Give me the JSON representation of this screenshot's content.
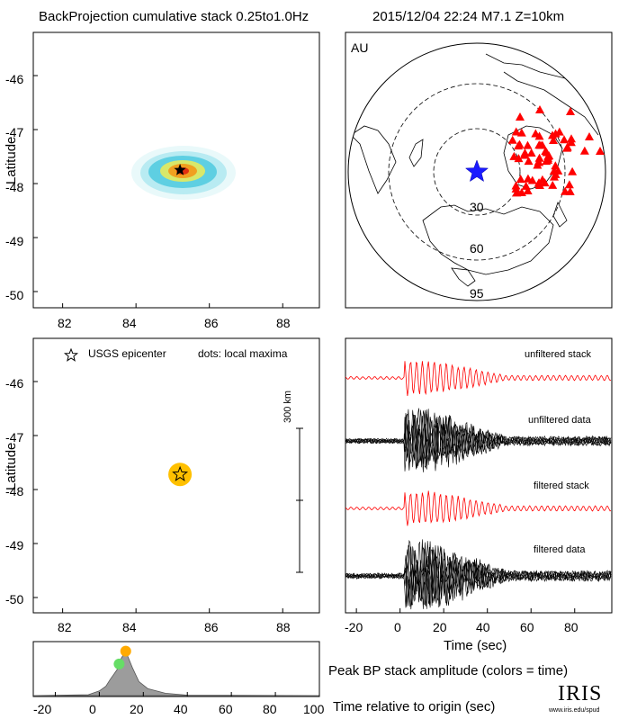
{
  "header": {
    "title": "BackProjection cumulative stack 0.25to1.0Hz",
    "event": "2015/12/04 22:24  M7.1  Z=10km"
  },
  "chart_data": [
    {
      "type": "heatmap",
      "panel": "backprojection-cumulative",
      "xlabel": "",
      "ylabel": "Latitude",
      "xlim": [
        81.2,
        89.0
      ],
      "ylim": [
        -50.3,
        -45.2
      ],
      "xticks": [
        "82",
        "84",
        "86",
        "88"
      ],
      "yticks": [
        "-46",
        "-47",
        "-48",
        "-49",
        "-50"
      ],
      "peak": {
        "lon": 85.2,
        "lat": -47.75
      },
      "epicenter": {
        "lon": 85.2,
        "lat": -47.75
      },
      "colors": {
        "outer": "#d7f4f6",
        "mid": "#5ecfe2",
        "inner": "#d8e86a",
        "core": "#f0a020",
        "peak": "#e03010"
      }
    },
    {
      "type": "scatter",
      "panel": "station-map",
      "projection_label": "AU",
      "ring_labels": [
        "30",
        "60",
        "95"
      ],
      "epicenter_color": "#1a1aff",
      "station_color": "#ff0000",
      "station_count": 62
    },
    {
      "type": "scatter",
      "panel": "local-maxima",
      "legend": {
        "star": "USGS epicenter",
        "dots": "dots: local maxima"
      },
      "scale_bar": "300 km",
      "xlabel": "",
      "ylabel": "Latitude",
      "xlim": [
        81.2,
        89.0
      ],
      "ylim": [
        -50.3,
        -45.2
      ],
      "xticks": [
        "82",
        "84",
        "86",
        "88"
      ],
      "yticks": [
        "-46",
        "-47",
        "-48",
        "-49",
        "-50"
      ],
      "points": [
        {
          "lon": 85.2,
          "lat": -47.72,
          "color": "#ffc000"
        }
      ],
      "epicenter": {
        "lon": 85.2,
        "lat": -47.72
      }
    },
    {
      "type": "line",
      "panel": "waveforms",
      "xlabel": "Time (sec)",
      "xlim": [
        -25,
        97
      ],
      "xticks": [
        "-20",
        "0",
        "20",
        "40",
        "60",
        "80"
      ],
      "traces": [
        {
          "name": "unfiltered stack",
          "color": "#ff0000"
        },
        {
          "name": "unfiltered data",
          "color": "#000000"
        },
        {
          "name": "filtered stack",
          "color": "#ff0000"
        },
        {
          "name": "filtered data",
          "color": "#000000"
        }
      ]
    },
    {
      "type": "area",
      "panel": "peak-amplitude",
      "caption": "Peak BP stack amplitude (colors = time)",
      "xlabel": "Time relative to origin (sec)",
      "xlim": [
        -30,
        100
      ],
      "xticks": [
        "-20",
        "0",
        "20",
        "40",
        "60",
        "80",
        "100"
      ],
      "x": [
        -30,
        -5,
        0,
        3,
        5,
        8,
        10,
        12,
        15,
        18,
        22,
        30,
        40,
        100
      ],
      "y": [
        0.0,
        0.02,
        0.1,
        0.2,
        0.35,
        0.55,
        0.8,
        0.95,
        0.6,
        0.3,
        0.15,
        0.05,
        0.01,
        0.0
      ],
      "dots": [
        {
          "x": 9,
          "color": "#66dd66"
        },
        {
          "x": 12,
          "color": "#ffaa00"
        }
      ]
    }
  ],
  "logo": {
    "text": "IRIS",
    "url_text": "www.iris.edu/spud"
  }
}
